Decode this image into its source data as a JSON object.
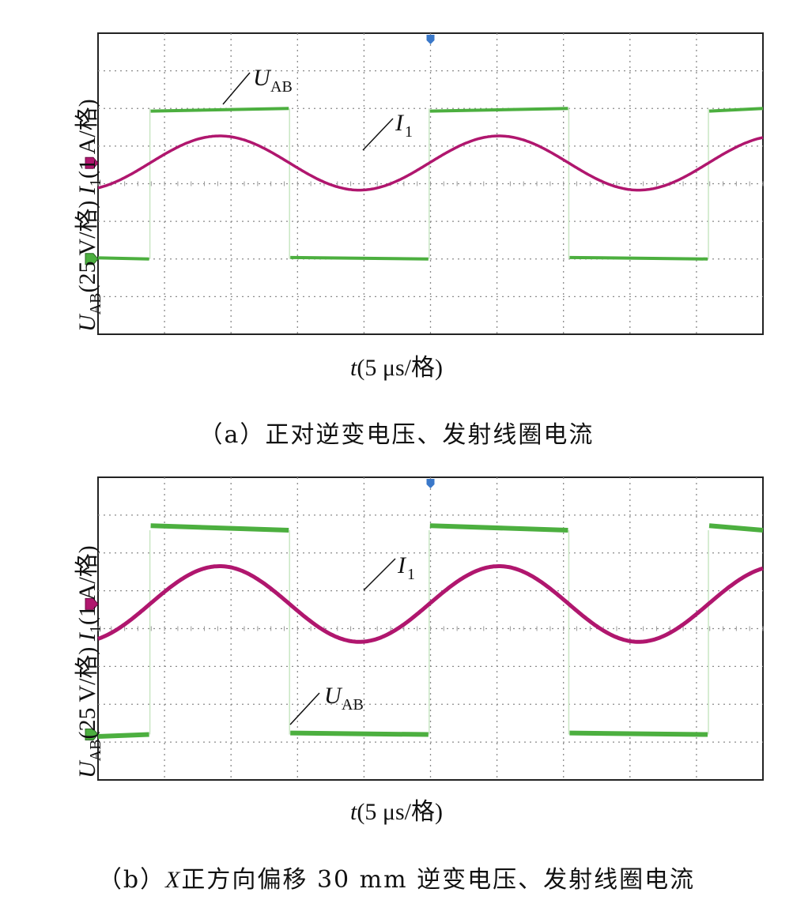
{
  "chart_data": [
    {
      "type": "line",
      "panel": "a",
      "caption": {
        "prefix": "（a）",
        "text": "正对逆变电压、发射线圈电流"
      },
      "xlabel": {
        "var": "t",
        "unit": "(5 μs/格)"
      },
      "ylabel": {
        "u_var": "U",
        "u_sub": "AB",
        "u_unit": "(25 V/格)",
        "i_var": "I",
        "i_sub": "1",
        "i_unit": "(1 A/格)"
      },
      "x_divisions": 10,
      "y_divisions": 8,
      "x_range_div": [
        0,
        10
      ],
      "grid": true,
      "series": [
        {
          "name": "UAB",
          "kind": "square",
          "color": "#4caf3f",
          "period_div": 4.2,
          "rise_div": 0.78,
          "fall_div": 1.83,
          "high_div": 6.0,
          "low_div": 2.0,
          "low_start_div": 2.03,
          "high_start_div": 5.93
        },
        {
          "name": "I1",
          "kind": "sine",
          "color": "#b0166e",
          "period_div": 4.2,
          "peak_div": 1.83,
          "center_div": 4.55,
          "amplitude_div": 0.72
        }
      ],
      "annotations": [
        {
          "series": "UAB",
          "var": "U",
          "sub": "AB"
        },
        {
          "series": "I1",
          "var": "I",
          "sub": "1"
        }
      ]
    },
    {
      "type": "line",
      "panel": "b",
      "caption": {
        "prefix": "（b）",
        "x": "X",
        "text": "正方向偏移 30 mm 逆变电压、发射线圈电流"
      },
      "xlabel": {
        "var": "t",
        "unit": "(5 μs/格)"
      },
      "ylabel": {
        "u_var": "U",
        "u_sub": "AB",
        "u_unit": "(25 V/格)",
        "i_var": "I",
        "i_sub": "1",
        "i_unit": "(1 A/格)"
      },
      "x_divisions": 10,
      "y_divisions": 8,
      "x_range_div": [
        0,
        10
      ],
      "grid": true,
      "series": [
        {
          "name": "UAB",
          "kind": "square",
          "color": "#4caf3f",
          "period_div": 4.2,
          "rise_div": 0.78,
          "fall_div": 1.83,
          "high_div": 6.6,
          "low_div": 1.2,
          "low_start_div": 1.15,
          "high_start_div": 6.72
        },
        {
          "name": "I1",
          "kind": "sine",
          "color": "#b0166e",
          "period_div": 4.2,
          "peak_div": 1.83,
          "center_div": 4.65,
          "amplitude_div": 1.0
        }
      ],
      "annotations": [
        {
          "series": "I1",
          "var": "I",
          "sub": "1"
        },
        {
          "series": "UAB",
          "var": "U",
          "sub": "AB"
        }
      ]
    }
  ]
}
